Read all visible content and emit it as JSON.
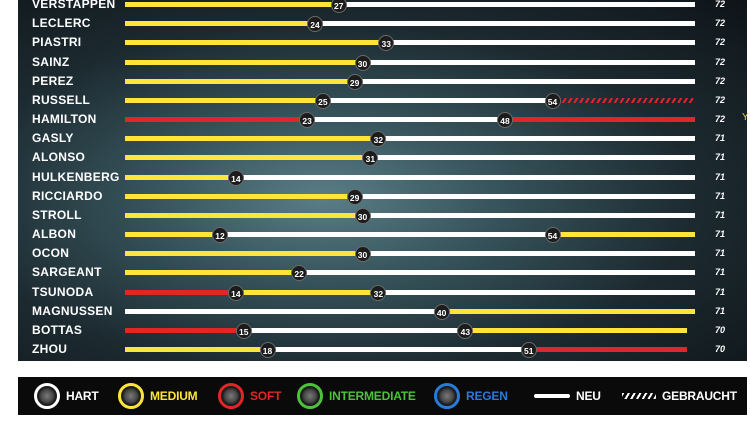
{
  "colors": {
    "hard": "#ffffff",
    "medium": "#ffe53a",
    "soft": "#e02626",
    "intermediate": "#4cc23a",
    "wet": "#2a7ad8"
  },
  "rows": [
    {
      "driver": "VERSTAPPEN",
      "laps": "72",
      "stints": [
        {
          "c": "#ffe53a",
          "from": 0,
          "to": 27
        },
        {
          "c": "#ffffff",
          "from": 27,
          "to": 72
        }
      ],
      "pit": [
        "27"
      ]
    },
    {
      "driver": "LECLERC",
      "laps": "72",
      "stints": [
        {
          "c": "#ffe53a",
          "from": 0,
          "to": 24
        },
        {
          "c": "#ffffff",
          "from": 24,
          "to": 72
        }
      ],
      "pit": [
        "24"
      ]
    },
    {
      "driver": "PIASTRI",
      "laps": "72",
      "stints": [
        {
          "c": "#ffe53a",
          "from": 0,
          "to": 33
        },
        {
          "c": "#ffffff",
          "from": 33,
          "to": 72
        }
      ],
      "pit": [
        "33"
      ]
    },
    {
      "driver": "SAINZ",
      "laps": "72",
      "stints": [
        {
          "c": "#ffe53a",
          "from": 0,
          "to": 30
        },
        {
          "c": "#ffffff",
          "from": 30,
          "to": 72
        }
      ],
      "pit": [
        "30"
      ]
    },
    {
      "driver": "PEREZ",
      "laps": "72",
      "stints": [
        {
          "c": "#ffe53a",
          "from": 0,
          "to": 29
        },
        {
          "c": "#ffffff",
          "from": 29,
          "to": 72
        }
      ],
      "pit": [
        "29"
      ]
    },
    {
      "driver": "RUSSELL",
      "laps": "72",
      "stints": [
        {
          "c": "#ffe53a",
          "from": 0,
          "to": 25
        },
        {
          "c": "#ffffff",
          "from": 25,
          "to": 54
        },
        {
          "c": "#e02626",
          "from": 54,
          "to": 72,
          "used": true
        }
      ],
      "pit": [
        "25",
        "54"
      ]
    },
    {
      "driver": "HAMILTON",
      "laps": "72",
      "stints": [
        {
          "c": "#e02626",
          "from": 0,
          "to": 23
        },
        {
          "c": "#ffffff",
          "from": 23,
          "to": 48
        },
        {
          "c": "#e02626",
          "from": 48,
          "to": 72
        }
      ],
      "pit": [
        "23",
        "48"
      ],
      "edge": "Y"
    },
    {
      "driver": "GASLY",
      "laps": "71",
      "stints": [
        {
          "c": "#ffe53a",
          "from": 0,
          "to": 32
        },
        {
          "c": "#ffffff",
          "from": 32,
          "to": 72
        }
      ],
      "pit": [
        "32"
      ]
    },
    {
      "driver": "ALONSO",
      "laps": "71",
      "stints": [
        {
          "c": "#ffe53a",
          "from": 0,
          "to": 31
        },
        {
          "c": "#ffffff",
          "from": 31,
          "to": 72
        }
      ],
      "pit": [
        "31"
      ]
    },
    {
      "driver": "HULKENBERG",
      "laps": "71",
      "stints": [
        {
          "c": "#ffe53a",
          "from": 0,
          "to": 14
        },
        {
          "c": "#ffffff",
          "from": 14,
          "to": 72
        }
      ],
      "pit": [
        "14"
      ]
    },
    {
      "driver": "RICCIARDO",
      "laps": "71",
      "stints": [
        {
          "c": "#ffe53a",
          "from": 0,
          "to": 29
        },
        {
          "c": "#ffffff",
          "from": 29,
          "to": 72
        }
      ],
      "pit": [
        "29"
      ]
    },
    {
      "driver": "STROLL",
      "laps": "71",
      "stints": [
        {
          "c": "#ffe53a",
          "from": 0,
          "to": 30
        },
        {
          "c": "#ffffff",
          "from": 30,
          "to": 72
        }
      ],
      "pit": [
        "30"
      ]
    },
    {
      "driver": "ALBON",
      "laps": "71",
      "stints": [
        {
          "c": "#ffe53a",
          "from": 0,
          "to": 12
        },
        {
          "c": "#ffffff",
          "from": 12,
          "to": 54
        },
        {
          "c": "#ffe53a",
          "from": 54,
          "to": 72
        }
      ],
      "pit": [
        "12",
        "54"
      ]
    },
    {
      "driver": "OCON",
      "laps": "71",
      "stints": [
        {
          "c": "#ffe53a",
          "from": 0,
          "to": 30
        },
        {
          "c": "#ffffff",
          "from": 30,
          "to": 72
        }
      ],
      "pit": [
        "30"
      ]
    },
    {
      "driver": "SARGEANT",
      "laps": "71",
      "stints": [
        {
          "c": "#ffe53a",
          "from": 0,
          "to": 22
        },
        {
          "c": "#ffffff",
          "from": 22,
          "to": 72
        }
      ],
      "pit": [
        "22"
      ]
    },
    {
      "driver": "TSUNODA",
      "laps": "71",
      "stints": [
        {
          "c": "#e02626",
          "from": 0,
          "to": 14
        },
        {
          "c": "#ffe53a",
          "from": 14,
          "to": 32
        },
        {
          "c": "#ffffff",
          "from": 32,
          "to": 72
        }
      ],
      "pit": [
        "14",
        "32"
      ]
    },
    {
      "driver": "MAGNUSSEN",
      "laps": "71",
      "stints": [
        {
          "c": "#ffffff",
          "from": 0,
          "to": 40
        },
        {
          "c": "#ffe53a",
          "from": 40,
          "to": 72
        }
      ],
      "pit": [
        "40"
      ]
    },
    {
      "driver": "BOTTAS",
      "laps": "70",
      "stints": [
        {
          "c": "#e02626",
          "from": 0,
          "to": 15
        },
        {
          "c": "#ffffff",
          "from": 15,
          "to": 43
        },
        {
          "c": "#ffe53a",
          "from": 43,
          "to": 71
        }
      ],
      "pit": [
        "15",
        "43"
      ]
    },
    {
      "driver": "ZHOU",
      "laps": "70",
      "stints": [
        {
          "c": "#ffe53a",
          "from": 0,
          "to": 18
        },
        {
          "c": "#ffffff",
          "from": 18,
          "to": 51
        },
        {
          "c": "#e02626",
          "from": 51,
          "to": 71
        }
      ],
      "pit": [
        "18",
        "51"
      ]
    }
  ],
  "legend": {
    "hard": "HART",
    "medium": "MEDIUM",
    "soft": "SOFT",
    "intermediate": "INTERMEDIATE",
    "wet": "REGEN",
    "new": "NEU",
    "used": "GEBRAUCHT"
  }
}
